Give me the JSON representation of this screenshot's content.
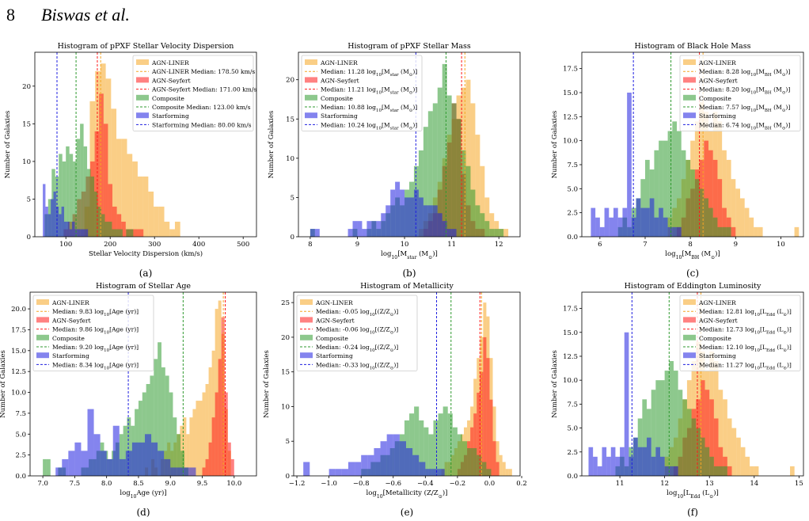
{
  "header": {
    "page_number": "8",
    "authors": "Biswas et al."
  },
  "colors": {
    "AGN-LINER": "#f5a623",
    "AGN-Seyfert": "#ff1a1a",
    "Composite": "#2f9a2f",
    "Starforming": "#1f1fe0"
  },
  "chart_data": [
    {
      "type": "bar",
      "panel": "(a)",
      "title": "Histogram of pPXF Stellar Velocity Dispersion",
      "xlabel": "Stellar Velocity Dispersion (km/s)",
      "ylabel": "Number of Galaxies",
      "xlim": [
        30,
        530
      ],
      "ylim": [
        0,
        24.5
      ],
      "xticks": [
        100,
        200,
        300,
        400,
        500
      ],
      "xtick_labels": [
        "100",
        "200",
        "300",
        "400",
        "500"
      ],
      "yticks": [
        0,
        5,
        10,
        15,
        20
      ],
      "ytick_labels": [
        "0",
        "5",
        "10",
        "15",
        "20"
      ],
      "legend": "top-right",
      "legend_entries": [
        "AGN-LINER",
        "AGN-LINER Median: 178.50 km/s",
        "AGN-Seyfert",
        "AGN-Seyfert Median: 171.00 km/s",
        "Composite",
        "Composite Median: 123.00 km/s",
        "Starforming",
        "Starforming Median: 80.00 km/s"
      ],
      "series": [
        {
          "name": "AGN-LINER",
          "bin_start": 142,
          "bin_width": 12,
          "counts": [
            4,
            18,
            22,
            23,
            21,
            17,
            13,
            13,
            11,
            10,
            8,
            8,
            6,
            4,
            4,
            2,
            1,
            2
          ]
        },
        {
          "name": "AGN-Seyfert",
          "bin_start": 95,
          "bin_width": 10,
          "counts": [
            1,
            2,
            3,
            5,
            6,
            8,
            10,
            14,
            19,
            15,
            7,
            4,
            3,
            2,
            1,
            1,
            1,
            1
          ]
        },
        {
          "name": "Composite",
          "bin_start": 52,
          "bin_width": 8,
          "counts": [
            3,
            5,
            9,
            8,
            11,
            10,
            12,
            11,
            10,
            13,
            15,
            12,
            9,
            8,
            6,
            4,
            3,
            2,
            2,
            1,
            1,
            1,
            0,
            1,
            1
          ]
        },
        {
          "name": "Starforming",
          "bin_start": 48,
          "bin_width": 6,
          "counts": [
            7,
            4,
            3,
            5,
            6,
            4,
            3,
            4,
            2,
            2,
            1,
            2,
            1,
            1,
            1,
            1,
            1
          ]
        }
      ],
      "medians": [
        178.5,
        171.0,
        123.0,
        80.0
      ]
    },
    {
      "type": "bar",
      "panel": "(b)",
      "title": "Histogram of pPXF Stellar Mass",
      "xlabel": "log<sub>10</sub>[M<sub>star</sub> (M<sub>⊙</sub>)]",
      "ylabel": "Number of Galaxies",
      "xlim": [
        7.75,
        12.45
      ],
      "ylim": [
        0,
        23.5
      ],
      "xticks": [
        8,
        9,
        10,
        11,
        12
      ],
      "xtick_labels": [
        "8",
        "9",
        "10",
        "11",
        "12"
      ],
      "yticks": [
        0,
        5,
        10,
        15,
        20
      ],
      "ytick_labels": [
        "0",
        "5",
        "10",
        "15",
        "20"
      ],
      "legend": "top-left",
      "legend_entries": [
        "AGN-LINER",
        "Median: 11.28 log<sub>10</sub>[M<sub>star</sub> (M<sub>⊙</sub>)]",
        "AGN-Seyfert",
        "Median: 11.21 log<sub>10</sub>[M<sub>star</sub> (M<sub>⊙</sub>)]",
        "Composite",
        "Median: 10.88 log<sub>10</sub>[M<sub>star</sub> (M<sub>⊙</sub>)]",
        "Starforming",
        "Median: 10.24 log<sub>10</sub>[M<sub>star</sub> (M<sub>⊙</sub>)]"
      ],
      "series": [
        {
          "name": "AGN-LINER",
          "bin_start": 10.3,
          "bin_width": 0.1,
          "counts": [
            1,
            2,
            3,
            5,
            7,
            10,
            13,
            15,
            18,
            19,
            20,
            17,
            13,
            9,
            5,
            3,
            2,
            1,
            1
          ]
        },
        {
          "name": "AGN-Seyfert",
          "bin_start": 10.4,
          "bin_width": 0.1,
          "counts": [
            1,
            2,
            3,
            6,
            9,
            12,
            17,
            15,
            8,
            4,
            2,
            1,
            1
          ]
        },
        {
          "name": "Composite",
          "bin_start": 8.0,
          "bin_width": 0.1,
          "counts": [
            1,
            0,
            0,
            0,
            0,
            0,
            0,
            0,
            0,
            1,
            0,
            0,
            1,
            2,
            1,
            2,
            3,
            4,
            5,
            4,
            6,
            7,
            9,
            11,
            14,
            16,
            17,
            19,
            22,
            18,
            17,
            15,
            11,
            9,
            6,
            4,
            3,
            2,
            1,
            1,
            1
          ]
        },
        {
          "name": "Starforming",
          "bin_start": 8.0,
          "bin_width": 0.1,
          "counts": [
            1,
            1,
            0,
            0,
            0,
            0,
            0,
            0,
            1,
            2,
            2,
            1,
            2,
            2,
            2,
            3,
            4,
            6,
            7,
            6,
            5,
            5,
            6,
            5,
            4,
            4,
            4,
            3,
            2,
            1,
            1
          ]
        }
      ],
      "medians": [
        11.28,
        11.21,
        10.88,
        10.24
      ]
    },
    {
      "type": "bar",
      "panel": "(c)",
      "title": "Histogram of Black Hole Mass",
      "xlabel": "log<sub>10</sub>[M<sub>BH</sub> (M<sub>⊙</sub>)]",
      "ylabel": "Number of Galaxies",
      "xlim": [
        5.6,
        10.5
      ],
      "ylim": [
        0,
        19.2
      ],
      "xticks": [
        6,
        7,
        8,
        9,
        10
      ],
      "xtick_labels": [
        "6",
        "7",
        "8",
        "9",
        "10"
      ],
      "yticks": [
        0,
        2.5,
        5,
        7.5,
        10,
        12.5,
        15,
        17.5
      ],
      "ytick_labels": [
        "0.0",
        "2.5",
        "5.0",
        "7.5",
        "10.0",
        "12.5",
        "15.0",
        "17.5"
      ],
      "legend": "top-right",
      "legend_entries": [
        "AGN-LINER",
        "Median: 8.28 log<sub>10</sub>[M<sub>BH</sub> (M<sub>⊙</sub>)]",
        "AGN-Seyfert",
        "Median: 8.20 log<sub>10</sub>[M<sub>BH</sub> (M<sub>⊙</sub>)]",
        "Composite",
        "Median: 7.57 log<sub>10</sub>[M<sub>BH</sub> (M<sub>⊙</sub>)]",
        "Starforming",
        "Median: 6.74 log<sub>10</sub>[M<sub>BH</sub> (M<sub>⊙</sub>)]"
      ],
      "series": [
        {
          "name": "AGN-LINER",
          "bin_start": 7.5,
          "bin_width": 0.1,
          "counts": [
            2,
            3,
            4,
            6,
            8,
            10,
            12,
            14,
            13,
            11,
            13,
            12,
            9,
            8,
            6,
            5,
            4,
            3,
            2,
            1,
            1,
            0,
            0,
            0,
            0,
            0,
            0,
            0,
            1
          ]
        },
        {
          "name": "AGN-Seyfert",
          "bin_start": 7.7,
          "bin_width": 0.1,
          "counts": [
            1,
            2,
            4,
            5,
            7,
            8,
            10,
            9,
            8,
            6,
            3,
            2,
            1
          ]
        },
        {
          "name": "Composite",
          "bin_start": 6.4,
          "bin_width": 0.1,
          "counts": [
            1,
            2,
            1,
            3,
            4,
            6,
            8,
            7,
            9,
            10,
            10,
            11,
            12,
            11,
            9,
            8,
            7,
            6,
            5,
            4,
            3,
            2,
            1,
            1,
            1
          ]
        },
        {
          "name": "Starforming",
          "bin_start": 5.8,
          "bin_width": 0.1,
          "counts": [
            3,
            2,
            1,
            3,
            2,
            3,
            2,
            3,
            15,
            2,
            4,
            3,
            3,
            4,
            2,
            3,
            2,
            1,
            1,
            1
          ]
        }
      ],
      "medians": [
        8.28,
        8.2,
        7.57,
        6.74
      ]
    },
    {
      "type": "bar",
      "panel": "(d)",
      "title": "Histogram of Stellar Age",
      "xlabel": "log<sub>10</sub>Age (yr)]",
      "ylabel": "Number of Galaxies",
      "xlim": [
        6.8,
        10.35
      ],
      "ylim": [
        0,
        22.0
      ],
      "xticks": [
        7.0,
        7.5,
        8.0,
        8.5,
        9.0,
        9.5,
        10.0
      ],
      "xtick_labels": [
        "7.0",
        "7.5",
        "8.0",
        "8.5",
        "9.0",
        "9.5",
        "10.0"
      ],
      "yticks": [
        0,
        2.5,
        5,
        7.5,
        10,
        12.5,
        15,
        17.5,
        20
      ],
      "ytick_labels": [
        "0.0",
        "2.5",
        "5.0",
        "7.5",
        "10.0",
        "12.5",
        "15.0",
        "17.5",
        "20.0"
      ],
      "legend": "top-left",
      "legend_entries": [
        "AGN-LINER",
        "Median: 9.83 log<sub>10</sub>[Age (yr)]",
        "AGN-Seyfert",
        "Median: 9.86 log<sub>10</sub>[Age (yr)]",
        "Composite",
        "Median: 9.20 log<sub>10</sub>[Age (yr)]",
        "Starforming",
        "Median: 8.34 log<sub>10</sub>[Age (yr)]"
      ],
      "series": [
        {
          "name": "AGN-LINER",
          "bin_start": 8.6,
          "bin_width": 0.05,
          "counts": [
            1,
            0,
            2,
            1,
            0,
            2,
            3,
            4,
            3,
            4,
            5,
            6,
            7,
            5,
            7,
            8,
            9,
            9,
            10,
            11,
            13,
            15,
            20,
            21,
            17,
            8,
            3
          ]
        },
        {
          "name": "AGN-Seyfert",
          "bin_start": 9.5,
          "bin_width": 0.05,
          "counts": [
            1,
            2,
            4,
            7,
            10,
            14,
            19,
            10,
            4,
            2
          ]
        },
        {
          "name": "Composite",
          "bin_start": 7.0,
          "bin_width": 0.06,
          "counts": [
            2,
            2,
            0,
            0,
            1,
            1,
            0,
            0,
            0,
            0,
            1,
            1,
            2,
            2,
            3,
            4,
            3,
            2,
            3,
            4,
            5,
            6,
            7,
            6,
            8,
            9,
            10,
            11,
            12,
            14,
            16,
            13,
            12,
            10,
            7,
            5,
            3,
            1
          ]
        },
        {
          "name": "Starforming",
          "bin_start": 7.2,
          "bin_width": 0.1,
          "counts": [
            1,
            2,
            3,
            4,
            3,
            8,
            5,
            3,
            2,
            6,
            2,
            3,
            4,
            4,
            5,
            4,
            3,
            2,
            1,
            1,
            1,
            1
          ]
        }
      ],
      "medians": [
        9.83,
        9.86,
        9.2,
        8.34
      ]
    },
    {
      "type": "bar",
      "panel": "(e)",
      "title": "Histogram of Metallicity",
      "xlabel": "log<sub>10</sub>[Metallicity (Z/Z<sub>⊙</sub>)]",
      "ylabel": "Number of Galaxies",
      "xlim": [
        -1.22,
        0.19
      ],
      "ylim": [
        0,
        26.5
      ],
      "xticks": [
        -1.2,
        -1.0,
        -0.8,
        -0.6,
        -0.4,
        -0.2,
        0.0,
        0.2
      ],
      "xtick_labels": [
        "−1.2",
        "−1.0",
        "−0.8",
        "−0.6",
        "−0.4",
        "−0.2",
        "0.0",
        "0.2"
      ],
      "yticks": [
        0,
        5,
        10,
        15,
        20,
        25
      ],
      "ytick_labels": [
        "0",
        "5",
        "10",
        "15",
        "20",
        "25"
      ],
      "legend": "top-left",
      "legend_entries": [
        "AGN-LINER",
        "Median: -0.05 log<sub>10</sub>[(Z/Z<sub>⊙</sub>)]",
        "AGN-Seyfert",
        "Median: -0.06 log<sub>10</sub>[(Z/Z<sub>⊙</sub>)]",
        "Composite",
        "Median: -0.24 log<sub>10</sub>[(Z/Z<sub>⊙</sub>)]",
        "Starforming",
        "Median: -0.33 log<sub>10</sub>[(Z/Z<sub>⊙</sub>)]"
      ],
      "series": [
        {
          "name": "AGN-LINER",
          "bin_start": -0.3,
          "bin_width": 0.02,
          "counts": [
            1,
            2,
            2,
            3,
            4,
            5,
            6,
            7,
            8,
            10,
            14,
            17,
            20,
            25,
            23,
            17,
            10,
            5,
            3,
            2,
            1,
            1
          ]
        },
        {
          "name": "AGN-Seyfert",
          "bin_start": -0.2,
          "bin_width": 0.02,
          "counts": [
            1,
            2,
            3,
            5,
            7,
            9,
            12,
            15,
            20,
            17,
            11,
            5,
            2
          ]
        },
        {
          "name": "Composite",
          "bin_start": -0.8,
          "bin_width": 0.03,
          "counts": [
            1,
            1,
            2,
            2,
            3,
            3,
            4,
            5,
            6,
            8,
            9,
            10,
            8,
            7,
            6,
            8,
            9,
            10,
            9,
            7,
            6,
            5,
            4,
            4,
            3,
            2,
            1
          ]
        },
        {
          "name": "Starforming",
          "bin_start": -1.16,
          "bin_width": 0.04,
          "counts": [
            2,
            0,
            0,
            0,
            1,
            1,
            1,
            2,
            2,
            3,
            3,
            4,
            5,
            6,
            6,
            5,
            4,
            3,
            2,
            1,
            1,
            1
          ]
        }
      ],
      "medians": [
        -0.05,
        -0.06,
        -0.24,
        -0.33
      ]
    },
    {
      "type": "bar",
      "panel": "(f)",
      "title": "Histogram of Eddington Luminosity",
      "xlabel": "log<sub>10</sub>[L<sub>Edd</sub> (L<sub>⊙</sub>)]",
      "ylabel": "Number of Galaxies",
      "xlim": [
        10.15,
        15.1
      ],
      "ylim": [
        0,
        19.2
      ],
      "xticks": [
        11,
        12,
        13,
        14,
        15
      ],
      "xtick_labels": [
        "11",
        "12",
        "13",
        "14",
        "15"
      ],
      "yticks": [
        0,
        2.5,
        5,
        7.5,
        10,
        12.5,
        15,
        17.5
      ],
      "ytick_labels": [
        "0.0",
        "2.5",
        "5.0",
        "7.5",
        "10.0",
        "12.5",
        "15.0",
        "17.5"
      ],
      "legend": "top-right",
      "legend_entries": [
        "AGN-LINER",
        "Median: 12.81 log<sub>10</sub>[L<sub>Edd</sub> (L<sub>⊙</sub>)]",
        "AGN-Seyfert",
        "Median: 12.73 log<sub>10</sub>[L<sub>Edd</sub> (L<sub>⊙</sub>)]",
        "Composite",
        "Median: 12.10 log<sub>10</sub>[L<sub>Edd</sub> (L<sub>⊙</sub>)]",
        "Starforming",
        "Median: 11.27 log<sub>10</sub>[L<sub>Edd</sub> (L<sub>⊙</sub>)]"
      ],
      "series": [
        {
          "name": "AGN-LINER",
          "bin_start": 12.0,
          "bin_width": 0.1,
          "counts": [
            2,
            3,
            4,
            6,
            8,
            10,
            12,
            14,
            13,
            11,
            13,
            12,
            9,
            8,
            6,
            5,
            4,
            3,
            2,
            1,
            1,
            0,
            0,
            0,
            0,
            0,
            0,
            0,
            1
          ]
        },
        {
          "name": "AGN-Seyfert",
          "bin_start": 12.2,
          "bin_width": 0.1,
          "counts": [
            1,
            2,
            4,
            5,
            7,
            8,
            10,
            9,
            8,
            6,
            3,
            2,
            1
          ]
        },
        {
          "name": "Composite",
          "bin_start": 10.9,
          "bin_width": 0.1,
          "counts": [
            1,
            2,
            1,
            3,
            4,
            6,
            8,
            7,
            9,
            10,
            10,
            11,
            12,
            11,
            9,
            8,
            7,
            6,
            5,
            4,
            3,
            2,
            1,
            1,
            1
          ]
        },
        {
          "name": "Starforming",
          "bin_start": 10.3,
          "bin_width": 0.1,
          "counts": [
            3,
            2,
            1,
            3,
            2,
            3,
            2,
            3,
            15,
            2,
            4,
            3,
            3,
            4,
            2,
            3,
            2,
            1,
            1,
            1
          ]
        }
      ],
      "medians": [
        12.81,
        12.73,
        12.1,
        11.27
      ]
    }
  ]
}
